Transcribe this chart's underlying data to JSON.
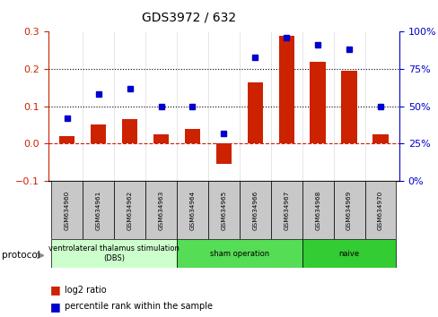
{
  "title": "GDS3972 / 632",
  "samples": [
    "GSM634960",
    "GSM634961",
    "GSM634962",
    "GSM634963",
    "GSM634964",
    "GSM634965",
    "GSM634966",
    "GSM634967",
    "GSM634968",
    "GSM634969",
    "GSM634970"
  ],
  "log2_ratio": [
    0.02,
    0.05,
    0.065,
    0.025,
    0.04,
    -0.055,
    0.165,
    0.29,
    0.22,
    0.195,
    0.025
  ],
  "percentile_rank": [
    42,
    58,
    62,
    50,
    50,
    32,
    83,
    96,
    91,
    88,
    50
  ],
  "groups": [
    {
      "label": "ventrolateral thalamus stimulation\n(DBS)",
      "start": 0,
      "end": 4,
      "color": "#ccffcc"
    },
    {
      "label": "sham operation",
      "start": 4,
      "end": 8,
      "color": "#55dd55"
    },
    {
      "label": "naive",
      "start": 8,
      "end": 11,
      "color": "#33cc33"
    }
  ],
  "left_ylim": [
    -0.1,
    0.3
  ],
  "right_ylim": [
    0,
    100
  ],
  "left_yticks": [
    -0.1,
    0.0,
    0.1,
    0.2,
    0.3
  ],
  "right_yticks": [
    0,
    25,
    50,
    75,
    100
  ],
  "hlines": [
    0.1,
    0.2
  ],
  "bar_color": "#cc2200",
  "dot_color": "#0000cc",
  "zero_line_color": "#cc2200",
  "bar_width": 0.5
}
